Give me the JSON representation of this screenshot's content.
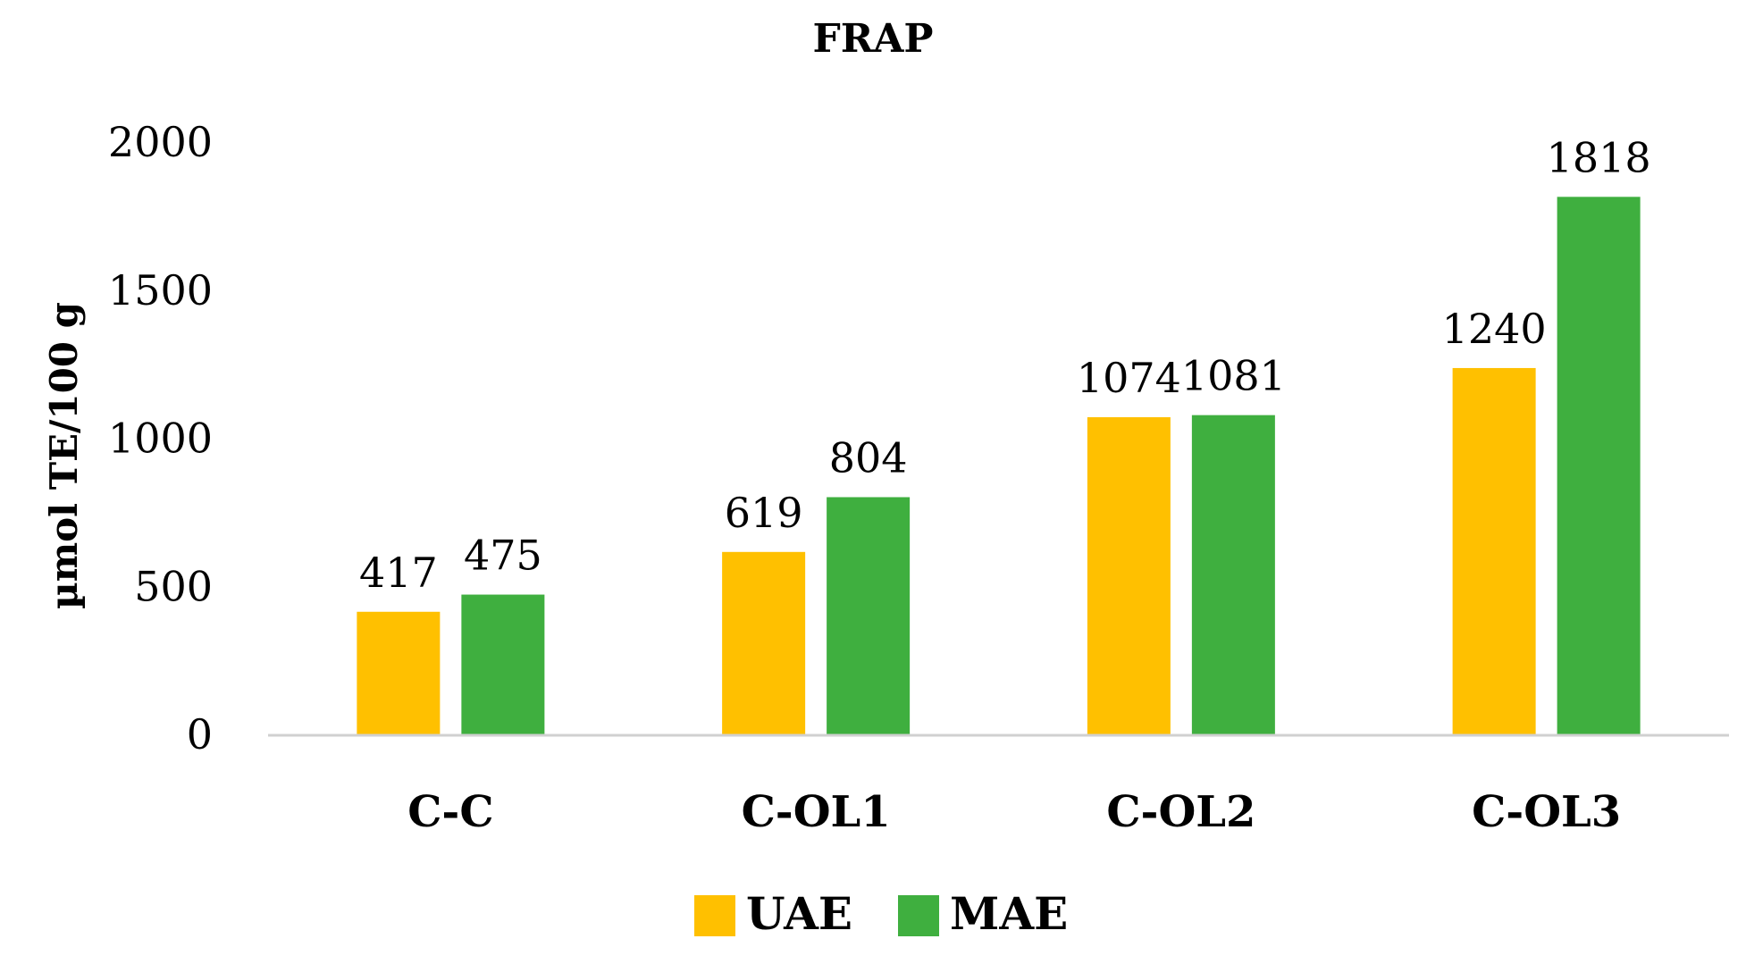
{
  "chart_data": {
    "type": "bar",
    "title": "FRAP",
    "xlabel": "",
    "ylabel": "µmol TE/100 g",
    "categories": [
      "C-C",
      "C-OL1",
      "C-OL2",
      "C-OL3"
    ],
    "series": [
      {
        "name": "UAE",
        "values": [
          417,
          619,
          1074,
          1240
        ],
        "color": "#FFC000"
      },
      {
        "name": "MAE",
        "values": [
          475,
          804,
          1081,
          1818
        ],
        "color": "#3FAF3F"
      }
    ],
    "ylim": [
      0,
      2000
    ],
    "yticks": [
      0,
      500,
      1000,
      1500,
      2000
    ],
    "grid": false,
    "legend": "bottom",
    "data_labels": true
  }
}
